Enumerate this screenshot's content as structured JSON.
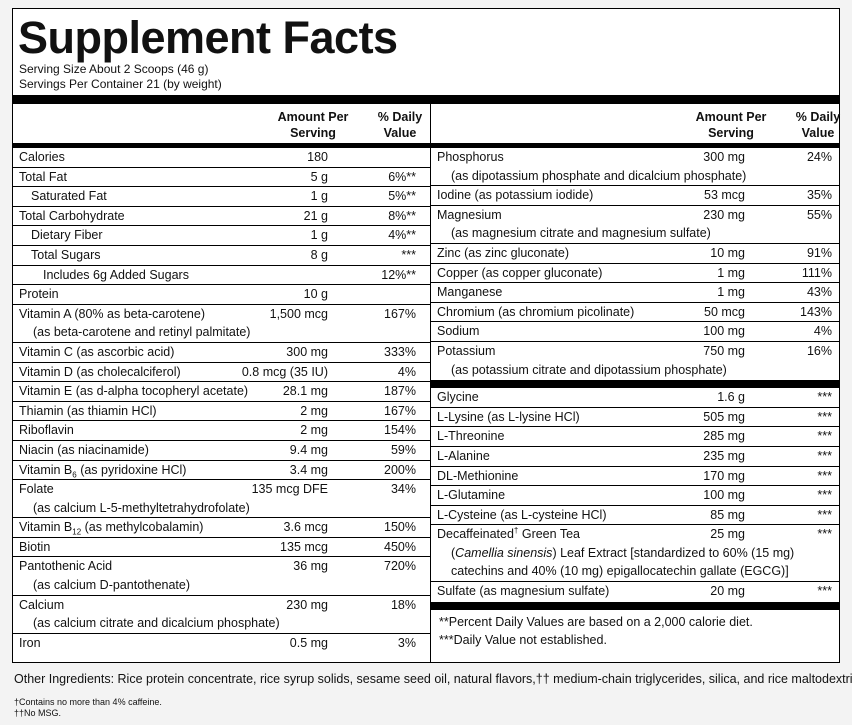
{
  "title": "Supplement Facts",
  "serving_size": "Serving Size About 2 Scoops (46 g)",
  "servings_per_container": "Servings Per Container 21 (by weight)",
  "left_column": {
    "header": {
      "amount": "Amount Per Serving",
      "daily_value": "% Daily Value"
    },
    "rows": [
      {
        "name": "Calories",
        "amount": "180"
      },
      {
        "name": "Total Fat",
        "amount": "5 g",
        "daily_value": "6%**",
        "subrows": [
          {
            "name": "Saturated Fat",
            "amount": "1 g",
            "daily_value": "5%**"
          }
        ]
      },
      {
        "name": "Total Carbohydrate",
        "amount": "21 g",
        "daily_value": "8%**",
        "subrows": [
          {
            "name": "Dietary Fiber",
            "amount": "1 g",
            "daily_value": "4%**"
          },
          {
            "name": "Total Sugars",
            "amount": "8 g",
            "daily_value": "***",
            "subrows": [
              {
                "name": "Includes 6g Added Sugars",
                "daily_value": "12%**"
              }
            ]
          }
        ]
      },
      {
        "name": "Protein",
        "amount": "10 g"
      },
      {
        "name": "Vitamin A (80% as beta-carotene)",
        "amount": "1,500 mcg",
        "daily_value": "167%",
        "notes": [
          "(as beta-carotene and retinyl palmitate)"
        ]
      },
      {
        "name": "Vitamin C (as ascorbic acid)",
        "amount": "300 mg",
        "daily_value": "333%"
      },
      {
        "name": "Vitamin D (as cholecalciferol)",
        "amount": "0.8 mcg (35 IU)",
        "daily_value": "4%"
      },
      {
        "name": "Vitamin E (as d-alpha tocopheryl acetate)",
        "amount": "28.1 mg",
        "daily_value": "187%"
      },
      {
        "name": "Thiamin (as thiamin HCl)",
        "amount": "2 mg",
        "daily_value": "167%"
      },
      {
        "name": "Riboflavin",
        "amount": "2 mg",
        "daily_value": "154%"
      },
      {
        "name": "Niacin (as niacinamide)",
        "amount": "9.4 mg",
        "daily_value": "59%"
      },
      {
        "name": "Vitamin B",
        "subscript": "6",
        "name_end": " (as pyridoxine HCl)",
        "amount": "3.4 mg",
        "daily_value": "200%"
      },
      {
        "name": "Folate",
        "amount": "135 mcg DFE",
        "daily_value": "34%",
        "notes": [
          "(as calcium L-5-methyltetrahydrofolate)"
        ]
      },
      {
        "name": "Vitamin B",
        "subscript": "12",
        "name_end": " (as methylcobalamin)",
        "amount": "3.6 mcg",
        "daily_value": "150%"
      },
      {
        "name": "Biotin",
        "amount": "135 mcg",
        "daily_value": "450%"
      },
      {
        "name": "Pantothenic Acid",
        "amount": "36 mg",
        "daily_value": "720%",
        "notes": [
          "(as calcium D-pantothenate)"
        ]
      },
      {
        "name": "Calcium",
        "amount": "230 mg",
        "daily_value": "18%",
        "notes": [
          "(as calcium citrate and dicalcium phosphate)"
        ]
      },
      {
        "name": "Iron",
        "amount": "0.5 mg",
        "daily_value": "3%"
      }
    ]
  },
  "right_column": {
    "header": {
      "amount": "Amount Per Serving",
      "daily_value": "% Daily Value"
    },
    "groups": [
      [
        {
          "name": "Phosphorus",
          "amount": "300 mg",
          "daily_value": "24%",
          "notes": [
            "(as dipotassium phosphate and dicalcium phosphate)"
          ]
        },
        {
          "name": "Iodine (as potassium iodide)",
          "amount": "53 mcg",
          "daily_value": "35%"
        },
        {
          "name": "Magnesium",
          "amount": "230 mg",
          "daily_value": "55%",
          "notes": [
            "(as magnesium citrate and magnesium sulfate)"
          ]
        },
        {
          "name": "Zinc (as zinc gluconate)",
          "amount": "10 mg",
          "daily_value": "91%"
        },
        {
          "name": "Copper (as copper gluconate)",
          "amount": "1 mg",
          "daily_value": "111%"
        },
        {
          "name": "Manganese",
          "amount": "1 mg",
          "daily_value": "43%"
        },
        {
          "name": "Chromium (as chromium picolinate)",
          "amount": "50 mcg",
          "daily_value": "143%"
        },
        {
          "name": "Sodium",
          "amount": "100 mg",
          "daily_value": "4%"
        },
        {
          "name": "Potassium",
          "amount": "750 mg",
          "daily_value": "16%",
          "notes": [
            "(as potassium citrate and dipotassium phosphate)"
          ]
        }
      ],
      [
        {
          "name": "Glycine",
          "amount": "1.6 g",
          "daily_value": "***"
        },
        {
          "name": "L-Lysine (as L-lysine HCl)",
          "amount": "505 mg",
          "daily_value": "***"
        },
        {
          "name": "L-Threonine",
          "amount": "285 mg",
          "daily_value": "***"
        },
        {
          "name": "L-Alanine",
          "amount": "235 mg",
          "daily_value": "***"
        },
        {
          "name": "DL-Methionine",
          "amount": "170 mg",
          "daily_value": "***"
        },
        {
          "name": "L-Glutamine",
          "amount": "100 mg",
          "daily_value": "***"
        },
        {
          "name": "L-Cysteine (as L-cysteine HCl)",
          "amount": "85 mg",
          "daily_value": "***"
        },
        {
          "name": "Decaffeinated",
          "superscript": "†",
          "name_end": " Green Tea",
          "amount": "25 mg",
          "daily_value": "***",
          "notes": [
            [
              "(",
              {
                "italic": "Camellia sinensis"
              },
              ") Leaf Extract [standardized to 60% (15 mg)"
            ],
            "catechins and 40% (10 mg) epigallocatechin gallate (EGCG)]"
          ]
        },
        {
          "name": "Sulfate (as magnesium sulfate)",
          "amount": "20 mg",
          "daily_value": "***"
        }
      ]
    ],
    "footnotes": [
      "**Percent Daily Values are based on a 2,000 calorie diet.",
      "***Daily Value not established."
    ]
  },
  "other_ingredients": "Other Ingredients: Rice protein concentrate, rice syrup solids, sesame seed oil, natural flavors,†† medium-chain triglycerides, silica, and rice maltodextrin.",
  "footnotes": [
    "†Contains no more than 4% caffeine.",
    "††No MSG."
  ]
}
